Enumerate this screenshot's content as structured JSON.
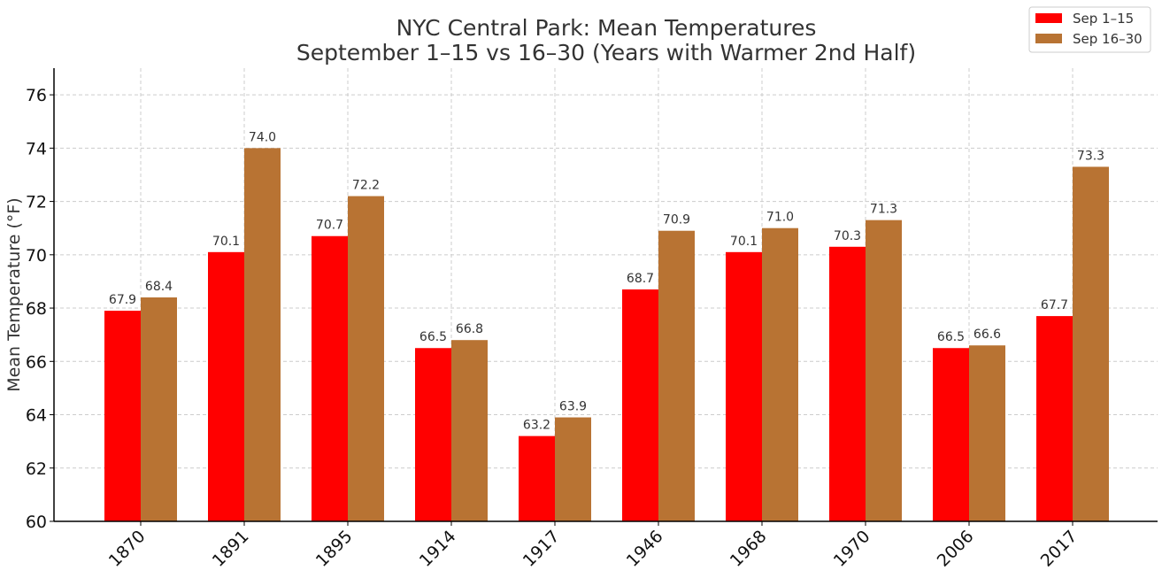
{
  "chart_data": {
    "type": "bar",
    "title": "NYC Central Park: Mean Temperatures",
    "subtitle": "September 1–15 vs 16–30 (Years with Warmer 2nd Half)",
    "xlabel": "",
    "ylabel": "Mean Temperature (°F)",
    "ylim": [
      60,
      77
    ],
    "yticks": [
      60,
      62,
      64,
      66,
      68,
      70,
      72,
      74,
      76
    ],
    "grid": true,
    "legend_position": "top-right",
    "categories": [
      "1870",
      "1891",
      "1895",
      "1914",
      "1917",
      "1946",
      "1968",
      "1970",
      "2006",
      "2017"
    ],
    "series": [
      {
        "name": "Sep 1–15",
        "color": "#ff0000",
        "values": [
          67.9,
          70.1,
          70.7,
          66.5,
          63.2,
          68.7,
          70.1,
          70.3,
          66.5,
          67.7
        ]
      },
      {
        "name": "Sep 16–30",
        "color": "#b87333",
        "values": [
          68.4,
          74.0,
          72.2,
          66.8,
          63.9,
          70.9,
          71.0,
          71.3,
          66.6,
          73.3
        ]
      }
    ]
  }
}
